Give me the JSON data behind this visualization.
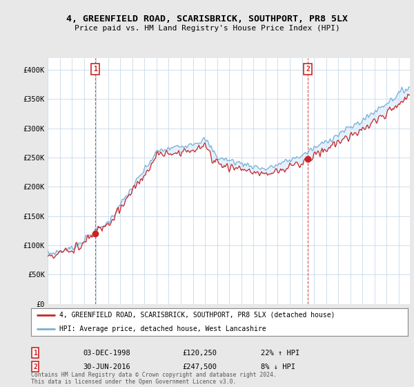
{
  "title": "4, GREENFIELD ROAD, SCARISBRICK, SOUTHPORT, PR8 5LX",
  "subtitle": "Price paid vs. HM Land Registry's House Price Index (HPI)",
  "bg_color": "#e8e8e8",
  "plot_bg_color": "#ffffff",
  "red_color": "#cc2222",
  "blue_color": "#7bafd4",
  "fill_color": "#ddeeff",
  "marker1_idx": 47,
  "marker2_idx": 258,
  "sale1_label": "03-DEC-1998",
  "sale1_price": "£120,250",
  "sale1_hpi": "22% ↑ HPI",
  "sale2_label": "30-JUN-2016",
  "sale2_price": "£247,500",
  "sale2_hpi": "8% ↓ HPI",
  "legend_line1": "4, GREENFIELD ROAD, SCARISBRICK, SOUTHPORT, PR8 5LX (detached house)",
  "legend_line2": "HPI: Average price, detached house, West Lancashire",
  "footer": "Contains HM Land Registry data © Crown copyright and database right 2024.\nThis data is licensed under the Open Government Licence v3.0.",
  "ylim": [
    0,
    420000
  ],
  "yticks": [
    0,
    50000,
    100000,
    150000,
    200000,
    250000,
    300000,
    350000,
    400000
  ],
  "ytick_labels": [
    "£0",
    "£50K",
    "£100K",
    "£150K",
    "£200K",
    "£250K",
    "£300K",
    "£350K",
    "£400K"
  ],
  "n_months": 360,
  "start_year": 1995
}
